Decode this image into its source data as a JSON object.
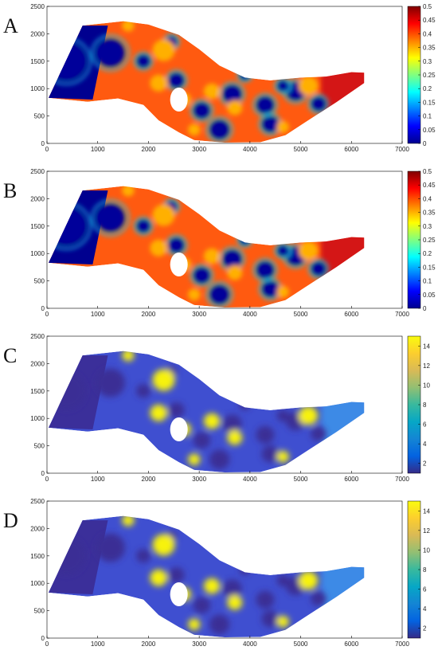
{
  "chart_data": [
    {
      "type": "heatmap",
      "panel_label": "A",
      "x_ticks": [
        "0",
        "1000",
        "2000",
        "3000",
        "4000",
        "5000",
        "6000",
        "7000"
      ],
      "y_ticks": [
        "0",
        "500",
        "1000",
        "1500",
        "2000",
        "2500"
      ],
      "xlim": [
        0,
        7000
      ],
      "ylim": [
        0,
        2500
      ],
      "colormap": "jet",
      "colorbar_ticks": [
        "0",
        "0.05",
        "0.1",
        "0.15",
        "0.2",
        "0.25",
        "0.3",
        "0.35",
        "0.4",
        "0.45",
        "0.5"
      ],
      "colorbar_range": [
        0,
        0.5
      ]
    },
    {
      "type": "heatmap",
      "panel_label": "B",
      "x_ticks": [
        "0",
        "1000",
        "2000",
        "3000",
        "4000",
        "5000",
        "6000",
        "7000"
      ],
      "y_ticks": [
        "0",
        "500",
        "1000",
        "1500",
        "2000",
        "2500"
      ],
      "xlim": [
        0,
        7000
      ],
      "ylim": [
        0,
        2500
      ],
      "colormap": "jet",
      "colorbar_ticks": [
        "0",
        "0.05",
        "0.1",
        "0.15",
        "0.2",
        "0.25",
        "0.3",
        "0.35",
        "0.4",
        "0.45",
        "0.5"
      ],
      "colorbar_range": [
        0,
        0.5
      ]
    },
    {
      "type": "heatmap",
      "panel_label": "C",
      "x_ticks": [
        "0",
        "1000",
        "2000",
        "3000",
        "4000",
        "5000",
        "6000",
        "7000"
      ],
      "y_ticks": [
        "0",
        "500",
        "1000",
        "1500",
        "2000",
        "2500"
      ],
      "xlim": [
        0,
        7000
      ],
      "ylim": [
        0,
        2500
      ],
      "colormap": "parula",
      "colorbar_ticks": [
        "2",
        "4",
        "6",
        "8",
        "10",
        "12",
        "14"
      ],
      "colorbar_range": [
        1,
        15
      ]
    },
    {
      "type": "heatmap",
      "panel_label": "D",
      "x_ticks": [
        "0",
        "1000",
        "2000",
        "3000",
        "4000",
        "5000",
        "6000",
        "7000"
      ],
      "y_ticks": [
        "0",
        "500",
        "1000",
        "1500",
        "2000",
        "2500"
      ],
      "xlim": [
        0,
        7000
      ],
      "ylim": [
        0,
        2500
      ],
      "colormap": "parula",
      "colorbar_ticks": [
        "2",
        "4",
        "6",
        "8",
        "10",
        "12",
        "14"
      ],
      "colorbar_range": [
        1,
        15
      ]
    }
  ]
}
